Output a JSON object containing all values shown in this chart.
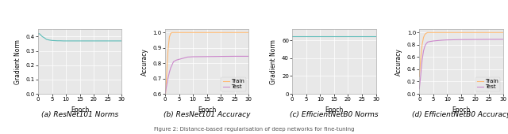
{
  "subplot_titles": [
    "(a) ResNet101 Norms",
    "(b) ResNet101 Accuracy",
    "(c) EfficientNetB0 Norms",
    "(d) EfficientNetB0 Accuracy"
  ],
  "xlabel": "Epoch",
  "ylabel_norm": "Gradient Norm",
  "ylabel_acc": "Accuracy",
  "legend_labels": [
    "Train",
    "Test"
  ],
  "teal_color": "#5bbcb8",
  "train_color": "#ffb870",
  "test_color": "#cc88cc",
  "resnet_norm": {
    "x": [
      0,
      0.5,
      1,
      1.5,
      2,
      2.5,
      3,
      4,
      5,
      6,
      7,
      8,
      9,
      10,
      12,
      15,
      20,
      25,
      30
    ],
    "y": [
      0.42,
      0.42,
      0.41,
      0.4,
      0.395,
      0.388,
      0.381,
      0.376,
      0.373,
      0.372,
      0.371,
      0.371,
      0.37,
      0.37,
      0.37,
      0.37,
      0.37,
      0.37,
      0.37
    ],
    "ylim": [
      0,
      0.45
    ],
    "yticks": [
      0,
      0.1,
      0.2,
      0.3,
      0.4
    ]
  },
  "resnet_acc": {
    "train_x": [
      0,
      0.5,
      1,
      1.5,
      2,
      2.5,
      3,
      4,
      5,
      6,
      7,
      8,
      9,
      10,
      15,
      20,
      25,
      30
    ],
    "train_y": [
      0.555,
      0.72,
      0.88,
      0.97,
      0.995,
      1.0,
      1.0,
      1.0,
      1.0,
      1.0,
      1.0,
      1.0,
      1.0,
      1.0,
      1.0,
      1.0,
      1.0,
      1.0
    ],
    "test_x": [
      0,
      0.5,
      1,
      1.5,
      2,
      2.5,
      3,
      4,
      5,
      6,
      7,
      8,
      9,
      10,
      15,
      20,
      25,
      30
    ],
    "test_y": [
      0.6,
      0.65,
      0.7,
      0.74,
      0.77,
      0.79,
      0.81,
      0.82,
      0.825,
      0.83,
      0.835,
      0.84,
      0.841,
      0.842,
      0.843,
      0.844,
      0.845,
      0.845
    ],
    "ylim": [
      0.6,
      1.02
    ],
    "yticks": [
      0.6,
      0.7,
      0.8,
      0.9,
      1.0
    ]
  },
  "efficientnet_norm": {
    "x": [
      0,
      1,
      2,
      3,
      4,
      5,
      10,
      15,
      20,
      25,
      30
    ],
    "y": [
      64.5,
      64.5,
      64.5,
      64.5,
      64.5,
      64.5,
      64.5,
      64.5,
      64.5,
      64.5,
      64.5
    ],
    "ylim": [
      0,
      72
    ],
    "yticks": [
      0,
      20,
      40,
      60
    ]
  },
  "efficientnet_acc": {
    "train_x": [
      0,
      0.5,
      1,
      1.5,
      2,
      2.5,
      3,
      4,
      5,
      6,
      7,
      8,
      9,
      10,
      15,
      20,
      25,
      30
    ],
    "train_y": [
      0.28,
      0.58,
      0.8,
      0.92,
      0.97,
      0.99,
      1.0,
      1.0,
      1.0,
      1.0,
      1.0,
      1.0,
      1.0,
      1.0,
      1.0,
      1.0,
      1.0,
      1.0
    ],
    "test_x": [
      0,
      0.5,
      1,
      1.5,
      2,
      2.5,
      3,
      4,
      5,
      6,
      7,
      8,
      9,
      10,
      15,
      20,
      25,
      30
    ],
    "test_y": [
      0.08,
      0.3,
      0.55,
      0.7,
      0.78,
      0.82,
      0.845,
      0.855,
      0.862,
      0.867,
      0.871,
      0.875,
      0.878,
      0.88,
      0.885,
      0.887,
      0.889,
      0.89
    ],
    "ylim": [
      0,
      1.05
    ],
    "yticks": [
      0,
      0.2,
      0.4,
      0.6,
      0.8,
      1.0
    ]
  },
  "caption": "Figure 2: Distance-based regularisation of deep networks for fine-tuning",
  "title_fontsize": 6.5,
  "tick_fontsize": 5,
  "label_fontsize": 5.5,
  "legend_fontsize": 5,
  "caption_fontsize": 5
}
